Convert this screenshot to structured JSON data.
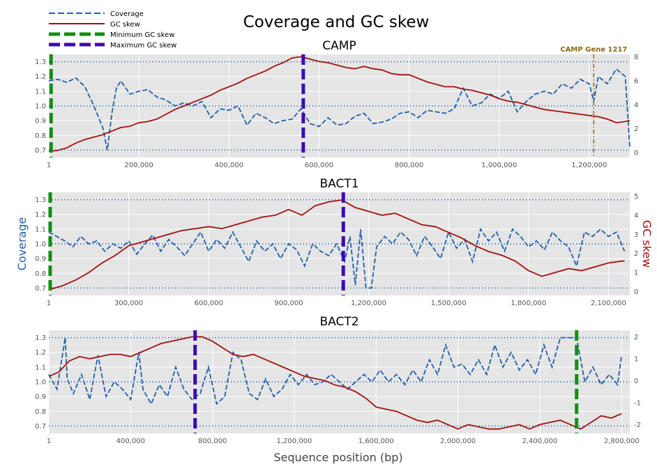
{
  "figure": {
    "title": "Coverage and GC skew",
    "xlabel": "Sequence position (bp)",
    "ylabel_left": "Coverage",
    "ylabel_right": "GC skew"
  },
  "legend": {
    "entries": [
      {
        "label": "Coverage",
        "color": "#1f5fa8",
        "style": "dashed"
      },
      {
        "label": "GC skew",
        "color": "#a50f0f",
        "style": "solid"
      },
      {
        "label": "Minimum GC skew",
        "color": "#148c14",
        "style": "dashed-thick"
      },
      {
        "label": "Maximum GC skew",
        "color": "#3c0ab4",
        "style": "dashed-thick"
      }
    ]
  },
  "colors": {
    "coverage": "#1f5fa8",
    "gc_skew": "#a50f0f",
    "min_skew": "#148c14",
    "max_skew": "#3c0ab4",
    "gene_marker": "#8b6914",
    "plot_bg": "#e5e5e5",
    "reference_lines": "#1f5fa8"
  },
  "chart_data": [
    {
      "type": "line",
      "title": "CAMP",
      "xlim": [
        1,
        1290000
      ],
      "xticks": [
        1,
        200000,
        400000,
        600000,
        800000,
        1000000,
        1200000
      ],
      "xtick_labels": [
        "1",
        "200,000",
        "400,000",
        "600,000",
        "800,000",
        "1,000,000",
        "1,200,000"
      ],
      "ylim_left": [
        0.65,
        1.35
      ],
      "yticks_left": [
        0.7,
        0.8,
        0.9,
        1.0,
        1.1,
        1.2,
        1.3
      ],
      "ytick_labels_left": [
        "0.7",
        "0.8",
        "0.9",
        "1.0",
        "1.1",
        "1.2",
        "1.3"
      ],
      "ylim_right": [
        -0.4,
        8.2
      ],
      "yticks_right": [
        0,
        2,
        4,
        6,
        8
      ],
      "ytick_labels_right": [
        "0",
        "2",
        "4",
        "6",
        "8"
      ],
      "reference_lines": [
        0.7,
        1.0,
        1.3
      ],
      "min_skew_x": 5000,
      "max_skew_x": 565000,
      "annotation": {
        "x": 1210000,
        "label": "CAMP Gene 1217"
      },
      "series": [
        {
          "name": "Coverage",
          "x": [
            1,
            20000,
            40000,
            60000,
            80000,
            100000,
            120000,
            130000,
            140000,
            150000,
            160000,
            180000,
            200000,
            220000,
            240000,
            260000,
            280000,
            300000,
            320000,
            340000,
            360000,
            380000,
            400000,
            420000,
            440000,
            460000,
            480000,
            500000,
            520000,
            540000,
            560000,
            580000,
            600000,
            620000,
            640000,
            660000,
            680000,
            700000,
            720000,
            740000,
            760000,
            780000,
            800000,
            820000,
            840000,
            860000,
            880000,
            900000,
            920000,
            940000,
            960000,
            980000,
            1000000,
            1020000,
            1040000,
            1060000,
            1080000,
            1100000,
            1120000,
            1140000,
            1160000,
            1180000,
            1200000,
            1210000,
            1220000,
            1240000,
            1260000,
            1280000,
            1290000
          ],
          "y": [
            1.17,
            1.18,
            1.16,
            1.19,
            1.13,
            1.0,
            0.85,
            0.7,
            0.95,
            1.12,
            1.17,
            1.08,
            1.1,
            1.11,
            1.06,
            1.04,
            1.0,
            1.02,
            1.0,
            1.03,
            0.92,
            0.98,
            0.97,
            1.0,
            0.87,
            0.95,
            0.92,
            0.88,
            0.9,
            0.91,
            0.98,
            0.88,
            0.86,
            0.92,
            0.87,
            0.88,
            0.93,
            0.95,
            0.88,
            0.89,
            0.91,
            0.95,
            0.96,
            0.92,
            0.97,
            0.96,
            0.95,
            0.98,
            1.12,
            1.0,
            1.02,
            1.08,
            1.05,
            1.1,
            0.96,
            1.03,
            1.08,
            1.1,
            1.08,
            1.15,
            1.12,
            1.18,
            1.15,
            1.03,
            1.2,
            1.15,
            1.25,
            1.2,
            0.72
          ]
        },
        {
          "name": "GC skew",
          "x": [
            1,
            20000,
            40000,
            60000,
            80000,
            100000,
            120000,
            140000,
            160000,
            180000,
            200000,
            220000,
            240000,
            260000,
            280000,
            300000,
            320000,
            340000,
            360000,
            380000,
            400000,
            420000,
            440000,
            460000,
            480000,
            500000,
            520000,
            540000,
            560000,
            580000,
            600000,
            620000,
            640000,
            660000,
            680000,
            700000,
            720000,
            740000,
            760000,
            780000,
            800000,
            820000,
            840000,
            860000,
            880000,
            900000,
            920000,
            940000,
            960000,
            980000,
            1000000,
            1020000,
            1040000,
            1060000,
            1080000,
            1100000,
            1120000,
            1140000,
            1160000,
            1180000,
            1200000,
            1220000,
            1240000,
            1260000,
            1280000,
            1290000
          ],
          "y": [
            0.1,
            0.2,
            0.4,
            0.8,
            1.1,
            1.3,
            1.5,
            1.8,
            2.1,
            2.2,
            2.5,
            2.6,
            2.8,
            3.2,
            3.6,
            3.9,
            4.2,
            4.5,
            4.8,
            5.2,
            5.5,
            5.8,
            6.2,
            6.5,
            6.8,
            7.2,
            7.5,
            7.9,
            8.0,
            7.8,
            7.6,
            7.5,
            7.3,
            7.1,
            7.0,
            7.2,
            7.0,
            6.9,
            6.6,
            6.5,
            6.5,
            6.2,
            5.9,
            5.7,
            5.5,
            5.5,
            5.3,
            5.2,
            5.0,
            4.8,
            4.5,
            4.3,
            4.2,
            4.0,
            3.8,
            3.6,
            3.5,
            3.4,
            3.3,
            3.2,
            3.1,
            3.0,
            2.8,
            2.5,
            2.6,
            2.7
          ]
        }
      ]
    },
    {
      "type": "line",
      "title": "BACT1",
      "xlim": [
        1,
        2180000
      ],
      "xticks": [
        1,
        300000,
        600000,
        900000,
        1200000,
        1500000,
        1800000,
        2100000
      ],
      "xtick_labels": [
        "1",
        "300,000",
        "600,000",
        "900,000",
        "1,200,000",
        "1,500,000",
        "1,800,000",
        "2,100,000"
      ],
      "ylim_left": [
        0.65,
        1.35
      ],
      "yticks_left": [
        0.7,
        0.8,
        0.9,
        1.0,
        1.1,
        1.2,
        1.3
      ],
      "ytick_labels_left": [
        "0.7",
        "0.8",
        "0.9",
        "1.0",
        "1.1",
        "1.2",
        "1.3"
      ],
      "ylim_right": [
        -0.2,
        5.2
      ],
      "yticks_right": [
        0,
        1,
        2,
        3,
        4,
        5
      ],
      "ytick_labels_right": [
        "0",
        "1",
        "2",
        "3",
        "4",
        "5"
      ],
      "reference_lines": [
        0.7,
        1.0,
        1.3
      ],
      "min_skew_x": 5000,
      "max_skew_x": 1105000,
      "series": [
        {
          "name": "Coverage",
          "x": [
            1,
            30000,
            60000,
            90000,
            120000,
            150000,
            180000,
            210000,
            240000,
            270000,
            300000,
            330000,
            360000,
            390000,
            420000,
            450000,
            480000,
            510000,
            540000,
            570000,
            600000,
            630000,
            660000,
            690000,
            720000,
            750000,
            780000,
            810000,
            840000,
            870000,
            900000,
            930000,
            960000,
            990000,
            1020000,
            1050000,
            1080000,
            1110000,
            1130000,
            1150000,
            1170000,
            1190000,
            1210000,
            1230000,
            1260000,
            1290000,
            1320000,
            1350000,
            1380000,
            1410000,
            1440000,
            1470000,
            1500000,
            1530000,
            1560000,
            1590000,
            1620000,
            1650000,
            1680000,
            1710000,
            1740000,
            1770000,
            1800000,
            1830000,
            1860000,
            1890000,
            1920000,
            1950000,
            1980000,
            2010000,
            2040000,
            2070000,
            2100000,
            2130000,
            2160000
          ],
          "y": [
            1.08,
            1.05,
            1.02,
            0.98,
            1.05,
            1.0,
            1.02,
            0.95,
            1.0,
            0.97,
            1.02,
            0.93,
            1.0,
            1.06,
            0.95,
            1.03,
            0.98,
            0.92,
            1.0,
            1.08,
            0.95,
            1.03,
            0.97,
            1.08,
            0.98,
            0.88,
            1.02,
            0.95,
            1.0,
            0.9,
            1.0,
            0.96,
            0.85,
            1.0,
            0.95,
            0.92,
            1.0,
            0.88,
            1.05,
            0.72,
            1.1,
            0.7,
            0.7,
            0.98,
            1.05,
            1.0,
            1.08,
            1.03,
            0.92,
            1.05,
            0.98,
            0.9,
            1.08,
            0.97,
            1.03,
            0.88,
            1.1,
            1.02,
            1.08,
            0.95,
            1.1,
            1.05,
            0.98,
            1.02,
            0.96,
            1.08,
            1.02,
            0.98,
            0.85,
            1.08,
            1.05,
            1.1,
            1.05,
            1.08,
            0.95
          ]
        },
        {
          "name": "GC skew",
          "x": [
            1,
            50000,
            100000,
            150000,
            200000,
            250000,
            300000,
            350000,
            400000,
            450000,
            500000,
            550000,
            600000,
            650000,
            700000,
            750000,
            800000,
            850000,
            900000,
            950000,
            1000000,
            1050000,
            1100000,
            1150000,
            1200000,
            1250000,
            1300000,
            1350000,
            1400000,
            1450000,
            1500000,
            1550000,
            1600000,
            1650000,
            1700000,
            1750000,
            1800000,
            1850000,
            1900000,
            1950000,
            2000000,
            2050000,
            2100000,
            2150000,
            2160000
          ],
          "y": [
            0.1,
            0.3,
            0.6,
            1.0,
            1.5,
            1.9,
            2.4,
            2.6,
            2.8,
            3.0,
            3.2,
            3.3,
            3.4,
            3.3,
            3.5,
            3.7,
            3.9,
            4.0,
            4.3,
            4.0,
            4.5,
            4.7,
            4.8,
            4.4,
            4.2,
            4.0,
            4.1,
            3.8,
            3.5,
            3.4,
            3.1,
            2.8,
            2.4,
            2.1,
            1.9,
            1.6,
            1.1,
            0.8,
            1.0,
            1.2,
            1.1,
            1.3,
            1.5,
            1.6,
            1.6
          ]
        }
      ]
    },
    {
      "type": "line",
      "title": "BACT2",
      "xlim": [
        1,
        2840000
      ],
      "xticks": [
        1,
        400000,
        800000,
        1200000,
        1600000,
        2000000,
        2400000,
        2800000
      ],
      "xtick_labels": [
        "1",
        "400,000",
        "800,000",
        "1,200,000",
        "1,600,000",
        "2,000,000",
        "2,400,000",
        "2,800,000"
      ],
      "ylim_left": [
        0.65,
        1.35
      ],
      "yticks_left": [
        0.7,
        0.8,
        0.9,
        1.0,
        1.1,
        1.2,
        1.3
      ],
      "ytick_labels_left": [
        "0.7",
        "0.8",
        "0.9",
        "1.0",
        "1.1",
        "1.2",
        "1.3"
      ],
      "ylim_right": [
        -2.4,
        2.3
      ],
      "yticks_right": [
        -2,
        -1,
        0,
        1,
        2
      ],
      "ytick_labels_right": [
        "-2",
        "-1",
        "0",
        "1",
        "2"
      ],
      "reference_lines": [
        0.7,
        1.0,
        1.3
      ],
      "min_skew_x": 2580000,
      "max_skew_x": 715000,
      "series": [
        {
          "name": "Coverage",
          "x": [
            1,
            40000,
            80000,
            90000,
            120000,
            160000,
            200000,
            240000,
            280000,
            320000,
            360000,
            400000,
            440000,
            460000,
            500000,
            540000,
            580000,
            620000,
            660000,
            700000,
            740000,
            780000,
            820000,
            860000,
            900000,
            940000,
            980000,
            1020000,
            1060000,
            1100000,
            1140000,
            1180000,
            1220000,
            1260000,
            1300000,
            1340000,
            1380000,
            1420000,
            1460000,
            1500000,
            1540000,
            1580000,
            1620000,
            1660000,
            1700000,
            1740000,
            1780000,
            1820000,
            1860000,
            1900000,
            1940000,
            1980000,
            2020000,
            2060000,
            2100000,
            2140000,
            2180000,
            2220000,
            2260000,
            2300000,
            2340000,
            2380000,
            2420000,
            2460000,
            2500000,
            2540000,
            2580000,
            2620000,
            2660000,
            2700000,
            2740000,
            2780000,
            2800000
          ],
          "y": [
            1.05,
            0.95,
            1.3,
            1.02,
            0.92,
            1.05,
            0.88,
            1.18,
            0.9,
            1.0,
            0.95,
            0.88,
            1.2,
            0.95,
            0.85,
            0.98,
            0.9,
            1.1,
            0.95,
            0.88,
            0.92,
            1.1,
            0.85,
            0.9,
            1.2,
            1.15,
            0.92,
            0.88,
            1.02,
            0.9,
            0.95,
            1.05,
            0.98,
            1.05,
            0.98,
            1.0,
            1.05,
            1.0,
            0.95,
            1.0,
            1.05,
            1.0,
            1.08,
            1.0,
            1.05,
            0.98,
            1.08,
            1.0,
            1.15,
            1.05,
            1.25,
            1.1,
            1.12,
            1.05,
            1.15,
            1.05,
            1.25,
            1.1,
            1.2,
            1.08,
            1.15,
            1.05,
            1.25,
            1.1,
            1.3,
            1.3,
            1.3,
            1.0,
            1.1,
            0.98,
            1.05,
            0.98,
            1.18
          ]
        },
        {
          "name": "GC skew",
          "x": [
            1,
            50000,
            100000,
            150000,
            200000,
            250000,
            300000,
            350000,
            400000,
            450000,
            500000,
            550000,
            600000,
            650000,
            700000,
            750000,
            800000,
            850000,
            900000,
            950000,
            1000000,
            1050000,
            1100000,
            1150000,
            1200000,
            1250000,
            1300000,
            1350000,
            1400000,
            1450000,
            1500000,
            1550000,
            1600000,
            1650000,
            1700000,
            1750000,
            1800000,
            1850000,
            1900000,
            1950000,
            2000000,
            2050000,
            2100000,
            2150000,
            2200000,
            2250000,
            2300000,
            2350000,
            2400000,
            2450000,
            2500000,
            2550000,
            2600000,
            2650000,
            2700000,
            2750000,
            2800000
          ],
          "y": [
            0.2,
            0.4,
            0.9,
            1.1,
            1.0,
            1.1,
            1.2,
            1.2,
            1.1,
            1.3,
            1.5,
            1.7,
            1.8,
            1.9,
            2.0,
            2.0,
            1.8,
            1.5,
            1.2,
            1.1,
            1.2,
            1.0,
            0.8,
            0.6,
            0.4,
            0.2,
            0.1,
            0.0,
            -0.2,
            -0.3,
            -0.5,
            -0.8,
            -1.2,
            -1.3,
            -1.4,
            -1.6,
            -1.8,
            -1.9,
            -1.8,
            -2.0,
            -2.2,
            -2.0,
            -2.1,
            -2.2,
            -2.2,
            -2.1,
            -2.0,
            -2.2,
            -2.0,
            -1.9,
            -1.8,
            -2.0,
            -2.2,
            -1.9,
            -1.6,
            -1.7,
            -1.5
          ]
        }
      ]
    }
  ]
}
